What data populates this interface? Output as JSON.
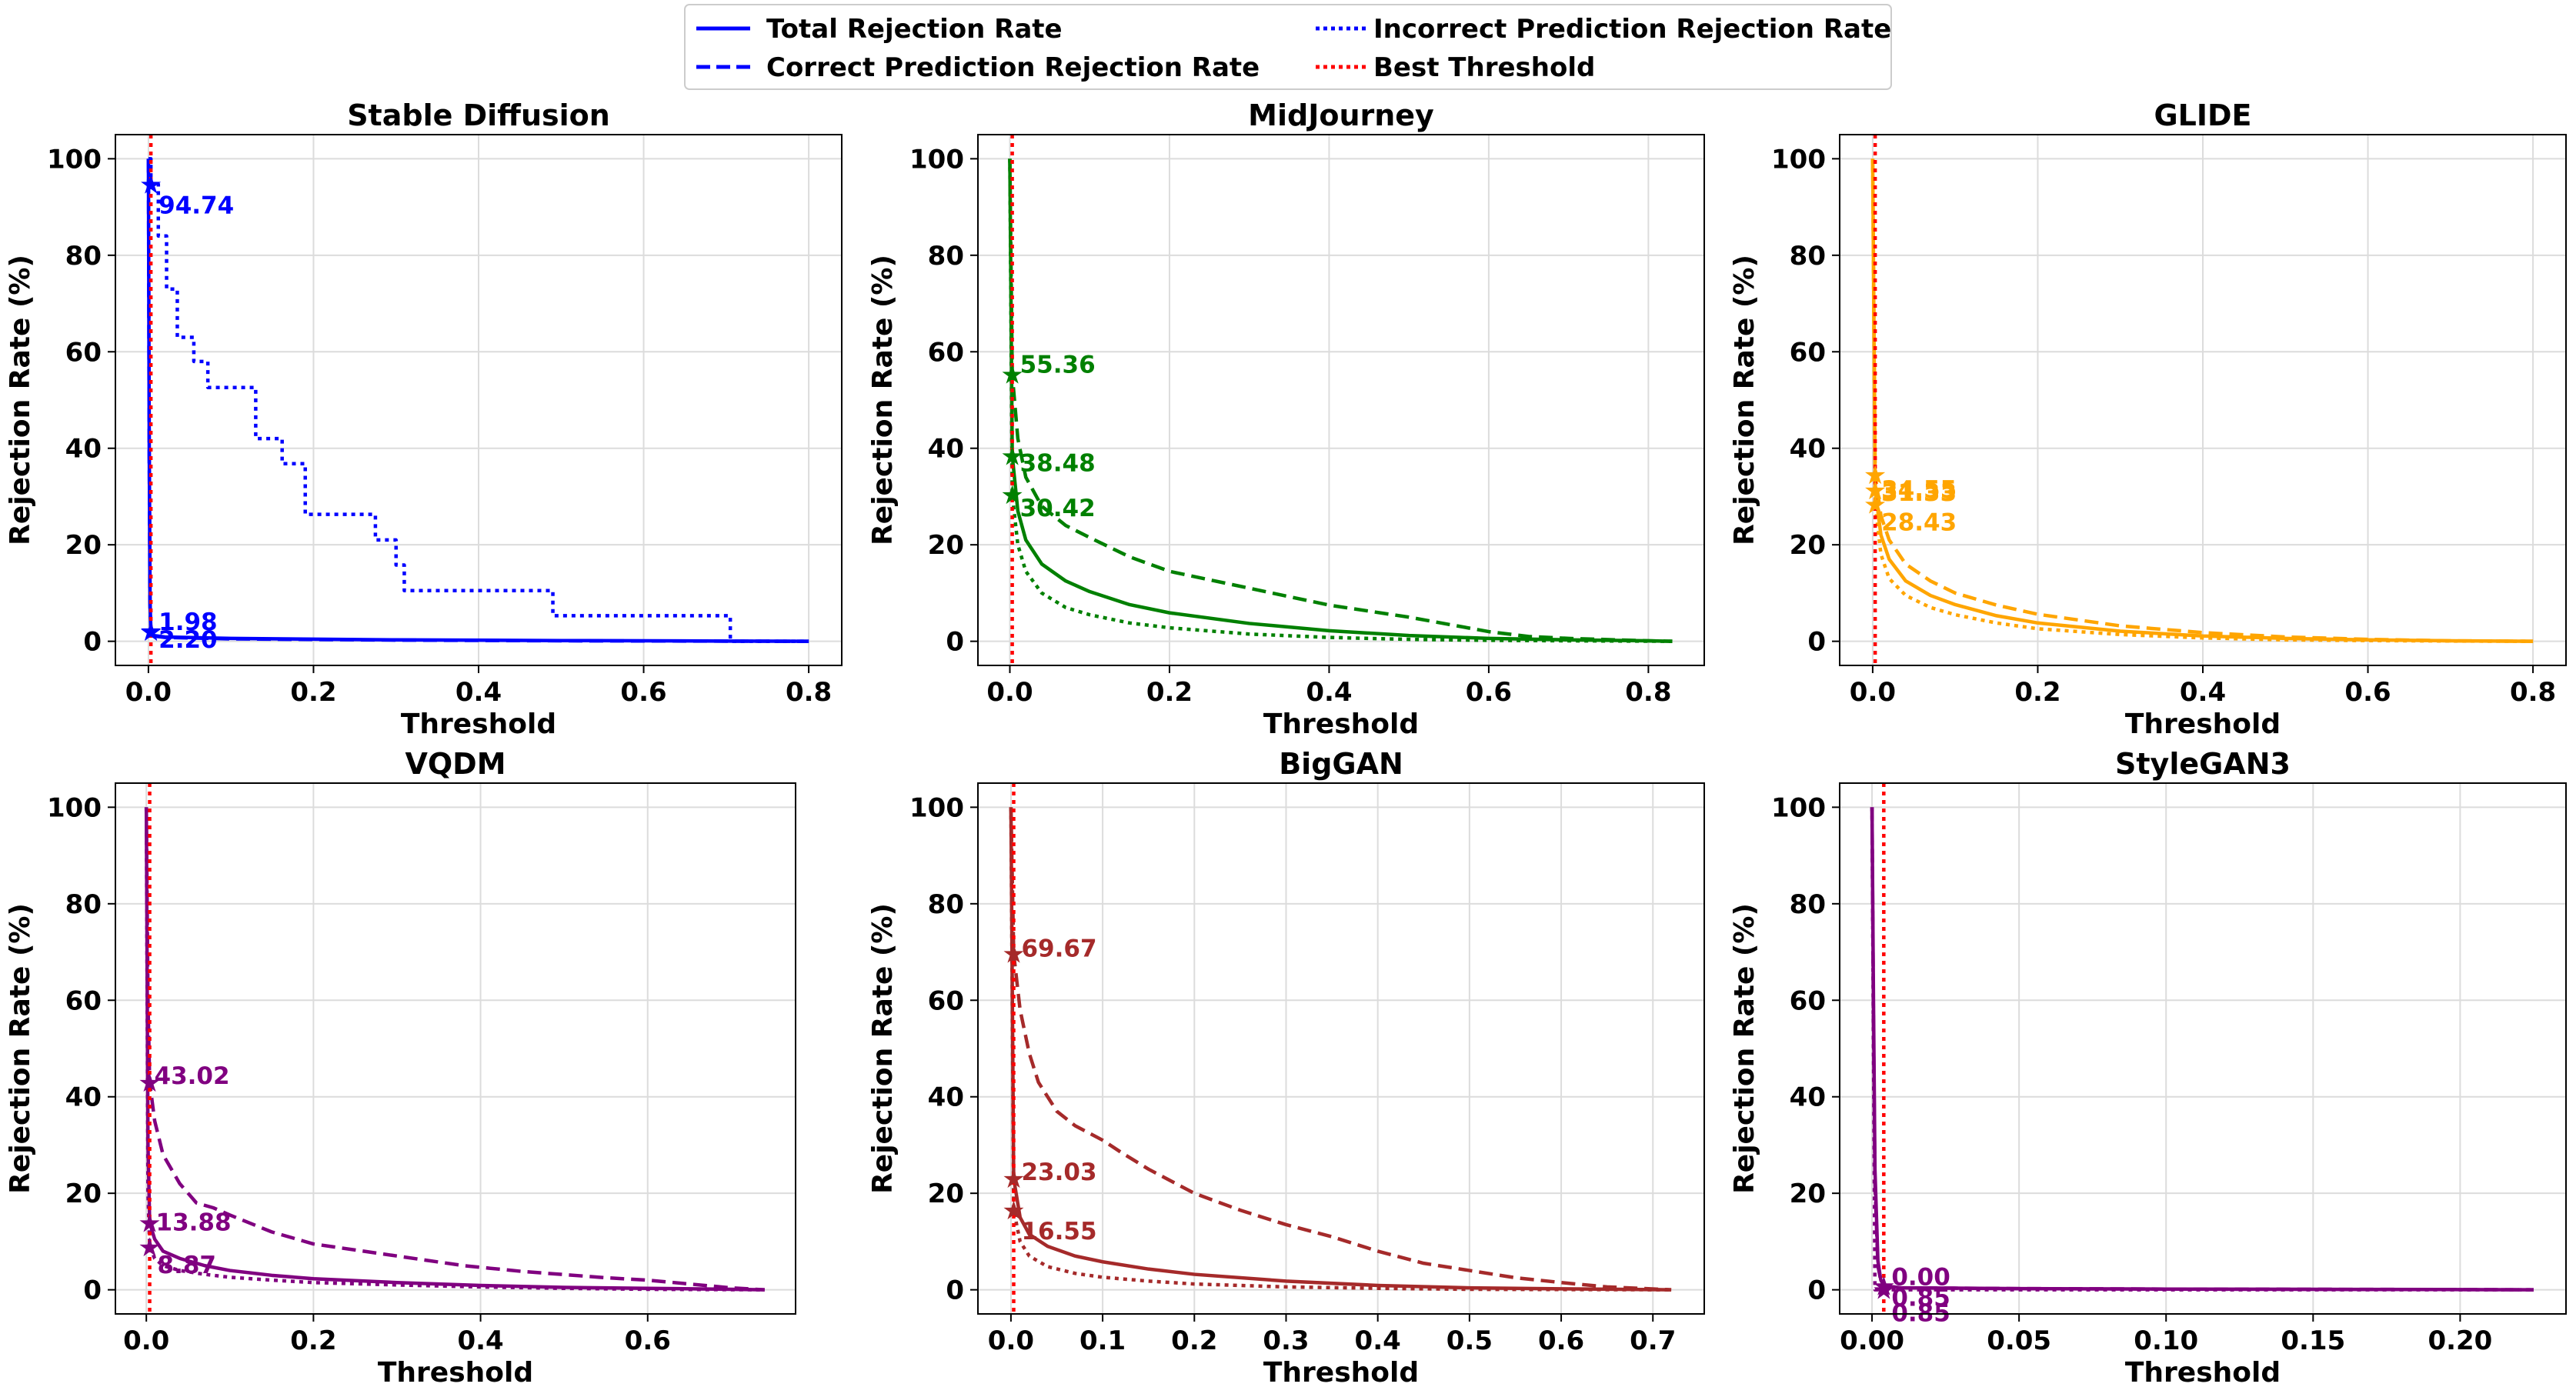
{
  "legend": {
    "items": [
      {
        "label": "Total Rejection Rate",
        "style": "solid",
        "color": "#0000ff"
      },
      {
        "label": "Correct Prediction Rejection Rate",
        "style": "dashed",
        "color": "#0000ff"
      },
      {
        "label": "Incorrect Prediction Rejection Rate",
        "style": "dotted",
        "color": "#0000ff"
      },
      {
        "label": "Best Threshold",
        "style": "dotted",
        "color": "#ff0000"
      }
    ]
  },
  "chart_data": [
    {
      "type": "line",
      "title": "Stable Diffusion",
      "xlabel": "Threshold",
      "ylabel": "Rejection Rate (%)",
      "color": "#0000ff",
      "xlim": [
        -0.04,
        0.84
      ],
      "ylim": [
        -5,
        105
      ],
      "xticks": [
        0.0,
        0.2,
        0.4,
        0.6,
        0.8
      ],
      "xtick_labels": [
        "0.0",
        "0.2",
        "0.4",
        "0.6",
        "0.8"
      ],
      "yticks": [
        0,
        20,
        40,
        60,
        80,
        100
      ],
      "best_threshold": 0.003,
      "series": [
        {
          "name": "Total Rejection Rate",
          "style": "solid",
          "x": [
            0,
            0.001,
            0.002,
            0.003,
            0.006,
            0.02,
            0.1,
            0.3,
            0.5,
            0.7,
            0.8
          ],
          "y": [
            100,
            40,
            8,
            2.2,
            1.2,
            0.9,
            0.6,
            0.3,
            0.15,
            0.05,
            0
          ]
        },
        {
          "name": "Correct Prediction Rejection Rate",
          "style": "dashed",
          "x": [
            0,
            0.001,
            0.002,
            0.003,
            0.006,
            0.02,
            0.1,
            0.3,
            0.5,
            0.7,
            0.8
          ],
          "y": [
            100,
            38,
            7,
            1.98,
            1.1,
            0.8,
            0.5,
            0.25,
            0.1,
            0.03,
            0
          ]
        },
        {
          "name": "Incorrect Prediction Rejection Rate",
          "style": "dotted",
          "step": true,
          "x": [
            0,
            0.003,
            0.012,
            0.022,
            0.035,
            0.055,
            0.072,
            0.13,
            0.14,
            0.162,
            0.19,
            0.275,
            0.3,
            0.31,
            0.49,
            0.705,
            0.705,
            0.8
          ],
          "y": [
            100,
            94.74,
            84,
            73,
            63,
            58,
            52.6,
            42,
            42,
            36.8,
            26.3,
            21,
            15.8,
            10.5,
            5.3,
            5.3,
            0,
            0
          ]
        }
      ],
      "annotations": [
        {
          "text": "94.74",
          "x": 0.003,
          "y": 94.74
        },
        {
          "text": "1.98",
          "x": 0.003,
          "y": 1.98
        },
        {
          "text": "2.20",
          "x": 0.003,
          "y": 2.2
        }
      ]
    },
    {
      "type": "line",
      "title": "MidJourney",
      "xlabel": "Threshold",
      "ylabel": "Rejection Rate (%)",
      "color": "#008000",
      "xlim": [
        -0.04,
        0.87
      ],
      "ylim": [
        -5,
        105
      ],
      "xticks": [
        0.0,
        0.2,
        0.4,
        0.6,
        0.8
      ],
      "xtick_labels": [
        "0.0",
        "0.2",
        "0.4",
        "0.6",
        "0.8"
      ],
      "yticks": [
        0,
        20,
        40,
        60,
        80,
        100
      ],
      "best_threshold": 0.003,
      "series": [
        {
          "name": "Total Rejection Rate",
          "style": "solid",
          "x": [
            0,
            0.003,
            0.01,
            0.02,
            0.04,
            0.07,
            0.1,
            0.15,
            0.2,
            0.3,
            0.4,
            0.5,
            0.6,
            0.7,
            0.8,
            0.83
          ],
          "y": [
            100,
            38.48,
            27,
            21,
            16,
            12.5,
            10.3,
            7.6,
            5.9,
            3.7,
            2.2,
            1.2,
            0.6,
            0.3,
            0.1,
            0
          ]
        },
        {
          "name": "Correct Prediction Rejection Rate",
          "style": "dashed",
          "x": [
            0,
            0.003,
            0.01,
            0.02,
            0.04,
            0.07,
            0.1,
            0.15,
            0.2,
            0.3,
            0.4,
            0.5,
            0.55,
            0.6,
            0.65,
            0.7,
            0.8,
            0.83
          ],
          "y": [
            100,
            55.36,
            42,
            34,
            28,
            24,
            21.5,
            17.5,
            14.5,
            11,
            7.5,
            5,
            3.5,
            2,
            1,
            0.6,
            0.1,
            0
          ]
        },
        {
          "name": "Incorrect Prediction Rejection Rate",
          "style": "dotted",
          "x": [
            0,
            0.003,
            0.01,
            0.02,
            0.04,
            0.07,
            0.1,
            0.15,
            0.2,
            0.3,
            0.4,
            0.5,
            0.6,
            0.7,
            0.83
          ],
          "y": [
            100,
            30.42,
            20,
            14.5,
            10,
            7,
            5.5,
            3.8,
            2.8,
            1.5,
            0.8,
            0.4,
            0.2,
            0.1,
            0
          ]
        }
      ],
      "annotations": [
        {
          "text": "55.36",
          "x": 0.003,
          "y": 55.36
        },
        {
          "text": "38.48",
          "x": 0.003,
          "y": 38.48
        },
        {
          "text": "30.42",
          "x": 0.003,
          "y": 30.42
        }
      ]
    },
    {
      "type": "line",
      "title": "GLIDE",
      "xlabel": "Threshold",
      "ylabel": "Rejection Rate (%)",
      "color": "#ffa500",
      "xlim": [
        -0.04,
        0.84
      ],
      "ylim": [
        -5,
        105
      ],
      "xticks": [
        0.0,
        0.2,
        0.4,
        0.6,
        0.8
      ],
      "xtick_labels": [
        "0.0",
        "0.2",
        "0.4",
        "0.6",
        "0.8"
      ],
      "yticks": [
        0,
        20,
        40,
        60,
        80,
        100
      ],
      "best_threshold": 0.003,
      "series": [
        {
          "name": "Total Rejection Rate",
          "style": "solid",
          "x": [
            0,
            0.003,
            0.01,
            0.02,
            0.04,
            0.07,
            0.1,
            0.15,
            0.2,
            0.3,
            0.4,
            0.5,
            0.6,
            0.7,
            0.8
          ],
          "y": [
            100,
            31.33,
            22,
            17,
            12.5,
            9.5,
            7.6,
            5.3,
            3.8,
            2.1,
            1.1,
            0.6,
            0.3,
            0.1,
            0
          ]
        },
        {
          "name": "Correct Prediction Rejection Rate",
          "style": "dashed",
          "x": [
            0,
            0.003,
            0.01,
            0.02,
            0.04,
            0.07,
            0.1,
            0.15,
            0.2,
            0.3,
            0.4,
            0.5,
            0.6,
            0.7,
            0.8
          ],
          "y": [
            100,
            34.55,
            26,
            21,
            16,
            12.5,
            10,
            7.5,
            5.6,
            3.2,
            1.8,
            0.9,
            0.4,
            0.1,
            0
          ]
        },
        {
          "name": "Incorrect Prediction Rejection Rate",
          "style": "dotted",
          "x": [
            0,
            0.003,
            0.01,
            0.02,
            0.04,
            0.07,
            0.1,
            0.15,
            0.2,
            0.3,
            0.4,
            0.5,
            0.6,
            0.7,
            0.8
          ],
          "y": [
            100,
            28.43,
            18,
            13,
            9.5,
            7,
            5.5,
            3.8,
            2.6,
            1.4,
            0.7,
            0.3,
            0.15,
            0.05,
            0
          ]
        }
      ],
      "annotations": [
        {
          "text": "34.55",
          "x": 0.003,
          "y": 34.55
        },
        {
          "text": "31.33",
          "x": 0.003,
          "y": 31.33
        },
        {
          "text": "28.43",
          "x": 0.003,
          "y": 28.43
        }
      ]
    },
    {
      "type": "line",
      "title": "VQDM",
      "xlabel": "Threshold",
      "ylabel": "Rejection Rate (%)",
      "color": "#800080",
      "xlim": [
        -0.037,
        0.777
      ],
      "ylim": [
        -5,
        105
      ],
      "xticks": [
        0.0,
        0.2,
        0.4,
        0.6
      ],
      "xtick_labels": [
        "0.0",
        "0.2",
        "0.4",
        "0.6"
      ],
      "yticks": [
        0,
        20,
        40,
        60,
        80,
        100
      ],
      "best_threshold": 0.004,
      "series": [
        {
          "name": "Total Rejection Rate",
          "style": "solid",
          "x": [
            0,
            0.002,
            0.004,
            0.01,
            0.02,
            0.04,
            0.07,
            0.1,
            0.15,
            0.2,
            0.3,
            0.4,
            0.5,
            0.6,
            0.7,
            0.74
          ],
          "y": [
            100,
            30,
            13.88,
            10.5,
            8,
            6.5,
            5,
            4,
            3,
            2.3,
            1.5,
            0.9,
            0.5,
            0.3,
            0.1,
            0
          ]
        },
        {
          "name": "Correct Prediction Rejection Rate",
          "style": "dashed",
          "x": [
            0,
            0.002,
            0.004,
            0.01,
            0.02,
            0.04,
            0.06,
            0.08,
            0.1,
            0.15,
            0.2,
            0.3,
            0.38,
            0.45,
            0.55,
            0.6,
            0.65,
            0.7,
            0.74
          ],
          "y": [
            100,
            60,
            43.02,
            35,
            28,
            22,
            18,
            17,
            15.5,
            12,
            9.5,
            7,
            5,
            3.8,
            2.5,
            2,
            1.2,
            0.4,
            0
          ]
        },
        {
          "name": "Incorrect Prediction Rejection Rate",
          "style": "dotted",
          "x": [
            0,
            0.002,
            0.004,
            0.01,
            0.02,
            0.04,
            0.07,
            0.1,
            0.15,
            0.2,
            0.3,
            0.4,
            0.5,
            0.6,
            0.74
          ],
          "y": [
            100,
            20,
            8.87,
            6.5,
            5,
            4,
            3.2,
            2.6,
            2,
            1.5,
            1,
            0.6,
            0.3,
            0.1,
            0
          ]
        }
      ],
      "annotations": [
        {
          "text": "43.02",
          "x": 0.004,
          "y": 43.02
        },
        {
          "text": "13.88",
          "x": 0.004,
          "y": 13.88
        },
        {
          "text": "8.87",
          "x": 0.004,
          "y": 8.87
        }
      ]
    },
    {
      "type": "line",
      "title": "BigGAN",
      "xlabel": "Threshold",
      "ylabel": "Rejection Rate (%)",
      "color": "#a52a2a",
      "xlim": [
        -0.036,
        0.756
      ],
      "ylim": [
        -5,
        105
      ],
      "xticks": [
        0.0,
        0.1,
        0.2,
        0.3,
        0.4,
        0.5,
        0.6,
        0.7
      ],
      "xtick_labels": [
        "0.0",
        "0.1",
        "0.2",
        "0.3",
        "0.4",
        "0.5",
        "0.6",
        "0.7"
      ],
      "yticks": [
        0,
        20,
        40,
        60,
        80,
        100
      ],
      "best_threshold": 0.003,
      "series": [
        {
          "name": "Total Rejection Rate",
          "style": "solid",
          "x": [
            0,
            0.003,
            0.01,
            0.02,
            0.04,
            0.07,
            0.1,
            0.15,
            0.2,
            0.3,
            0.4,
            0.5,
            0.6,
            0.72
          ],
          "y": [
            100,
            23.03,
            15,
            11.5,
            9,
            7,
            5.8,
            4.3,
            3.2,
            1.8,
            0.9,
            0.4,
            0.2,
            0
          ]
        },
        {
          "name": "Correct Prediction Rejection Rate",
          "style": "dashed",
          "x": [
            0,
            0.003,
            0.01,
            0.02,
            0.03,
            0.05,
            0.07,
            0.1,
            0.12,
            0.15,
            0.2,
            0.25,
            0.3,
            0.35,
            0.4,
            0.45,
            0.5,
            0.55,
            0.6,
            0.65,
            0.72
          ],
          "y": [
            100,
            69.67,
            58,
            49,
            43,
            37,
            34,
            31,
            28.5,
            25,
            20,
            16.5,
            13.5,
            11,
            8,
            5.5,
            4,
            2.5,
            1.5,
            0.6,
            0
          ]
        },
        {
          "name": "Incorrect Prediction Rejection Rate",
          "style": "dotted",
          "x": [
            0,
            0.003,
            0.01,
            0.02,
            0.04,
            0.07,
            0.1,
            0.15,
            0.2,
            0.3,
            0.4,
            0.5,
            0.72
          ],
          "y": [
            100,
            16.55,
            10,
            7,
            4.8,
            3.4,
            2.6,
            1.8,
            1.2,
            0.6,
            0.3,
            0.1,
            0
          ]
        }
      ],
      "annotations": [
        {
          "text": "69.67",
          "x": 0.003,
          "y": 69.67
        },
        {
          "text": "23.03",
          "x": 0.003,
          "y": 23.03
        },
        {
          "text": "16.55",
          "x": 0.003,
          "y": 16.55
        }
      ]
    },
    {
      "type": "line",
      "title": "StyleGAN3",
      "xlabel": "Threshold",
      "ylabel": "Rejection Rate (%)",
      "color": "#800080",
      "xlim": [
        -0.011,
        0.236
      ],
      "ylim": [
        -5,
        105
      ],
      "xticks": [
        0.0,
        0.05,
        0.1,
        0.15,
        0.2
      ],
      "xtick_labels": [
        "0.00",
        "0.05",
        "0.10",
        "0.15",
        "0.20"
      ],
      "yticks": [
        0,
        20,
        40,
        60,
        80,
        100
      ],
      "best_threshold": 0.004,
      "series": [
        {
          "name": "Total Rejection Rate",
          "style": "solid",
          "x": [
            0,
            0.0005,
            0.001,
            0.002,
            0.003,
            0.004,
            0.01,
            0.05,
            0.1,
            0.15,
            0.2,
            0.225
          ],
          "y": [
            100,
            60,
            25,
            6,
            2,
            0.85,
            0.4,
            0.25,
            0.15,
            0.1,
            0.05,
            0
          ]
        },
        {
          "name": "Correct Prediction Rejection Rate",
          "style": "dashed",
          "x": [
            0,
            0.0005,
            0.001,
            0.002,
            0.003,
            0.004,
            0.01,
            0.05,
            0.1,
            0.15,
            0.2,
            0.225
          ],
          "y": [
            100,
            55,
            22,
            5,
            1.8,
            0.85,
            0.4,
            0.25,
            0.15,
            0.1,
            0.05,
            0
          ]
        },
        {
          "name": "Incorrect Prediction Rejection Rate",
          "style": "dotted",
          "x": [
            0,
            0.001,
            0.004,
            0.225
          ],
          "y": [
            100,
            0,
            0,
            0
          ]
        }
      ],
      "annotations": [
        {
          "text": "0.00",
          "x": 0.004,
          "y": 0.0
        },
        {
          "text": "0.85",
          "x": 0.004,
          "y": 0.85
        },
        {
          "text": "0.85",
          "x": 0.004,
          "y": 0.85
        }
      ]
    }
  ]
}
